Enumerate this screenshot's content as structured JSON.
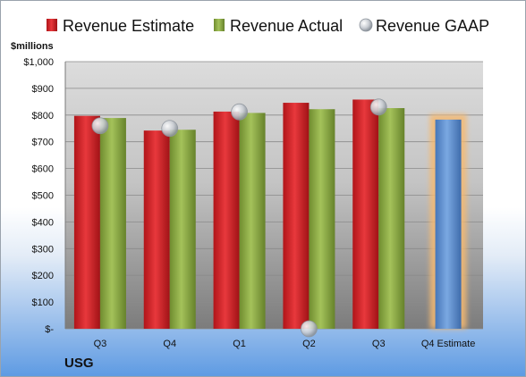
{
  "company": "USG",
  "chart_data": {
    "type": "bar",
    "unit_label": "$millions",
    "categories": [
      "Q3",
      "Q4",
      "Q1",
      "Q2",
      "Q3",
      "Q4 Estimate"
    ],
    "ylim": [
      0,
      1000
    ],
    "yticks": [
      0,
      100,
      200,
      300,
      400,
      500,
      600,
      700,
      800,
      900,
      1000
    ],
    "ytick_labels": [
      "$-",
      "$100",
      "$200",
      "$300",
      "$400",
      "$500",
      "$600",
      "$700",
      "$800",
      "$900",
      "$1,000"
    ],
    "grid": true,
    "legend_position": "top",
    "series": [
      {
        "name": "Revenue Estimate",
        "kind": "bar",
        "color": "#d9252a",
        "values": [
          797,
          742,
          813,
          846,
          858,
          null
        ]
      },
      {
        "name": "Revenue Actual",
        "kind": "bar",
        "color": "#8fae46",
        "values": [
          789,
          745,
          808,
          822,
          826,
          null
        ]
      },
      {
        "name": "Revenue GAAP",
        "kind": "point",
        "color": "#c9cdd3",
        "values": [
          760,
          750,
          812,
          0,
          830,
          null
        ]
      },
      {
        "name": "Q4 Estimate",
        "kind": "bar",
        "color": "#5b8fd4",
        "highlight": "#f5b971",
        "values": [
          null,
          null,
          null,
          null,
          null,
          783
        ]
      }
    ]
  }
}
